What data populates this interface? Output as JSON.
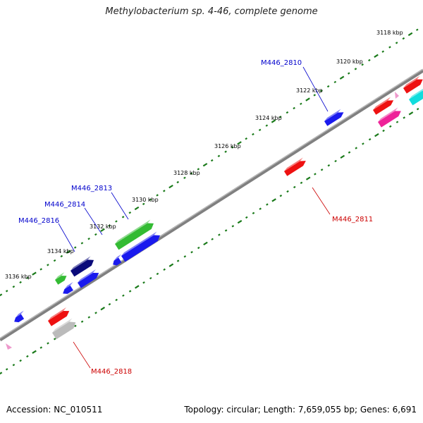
{
  "title": "Methylobacterium sp. 4-46, complete genome",
  "footer": {
    "accession": "Accession: NC_010511",
    "summary": "Topology: circular; Length: 7,659,055 bp; Genes: 6,691"
  },
  "colors": {
    "backbone": "#808080",
    "tick": "#1a7a1a",
    "label_forward": "#0000cc",
    "label_reverse": "#cc0000",
    "blue": "#1a1aee",
    "navy": "#0a0a7a",
    "green": "#33bb33",
    "red": "#ee1111",
    "magenta": "#ee2299",
    "cyan": "#11dddd",
    "gray": "#bbbbbb",
    "pink": "#ee99cc"
  },
  "kbp_ticks": [
    "3118 kbp",
    "3120 kbp",
    "3122 kbp",
    "3124 kbp",
    "3126 kbp",
    "3128 kbp",
    "3130 kbp",
    "3132 kbp",
    "3134 kbp",
    "3136 kbp"
  ],
  "gene_labels": {
    "M446_2810": "M446_2810",
    "M446_2811": "M446_2811",
    "M446_2813": "M446_2813",
    "M446_2814": "M446_2814",
    "M446_2816": "M446_2816",
    "M446_2818": "M446_2818"
  }
}
